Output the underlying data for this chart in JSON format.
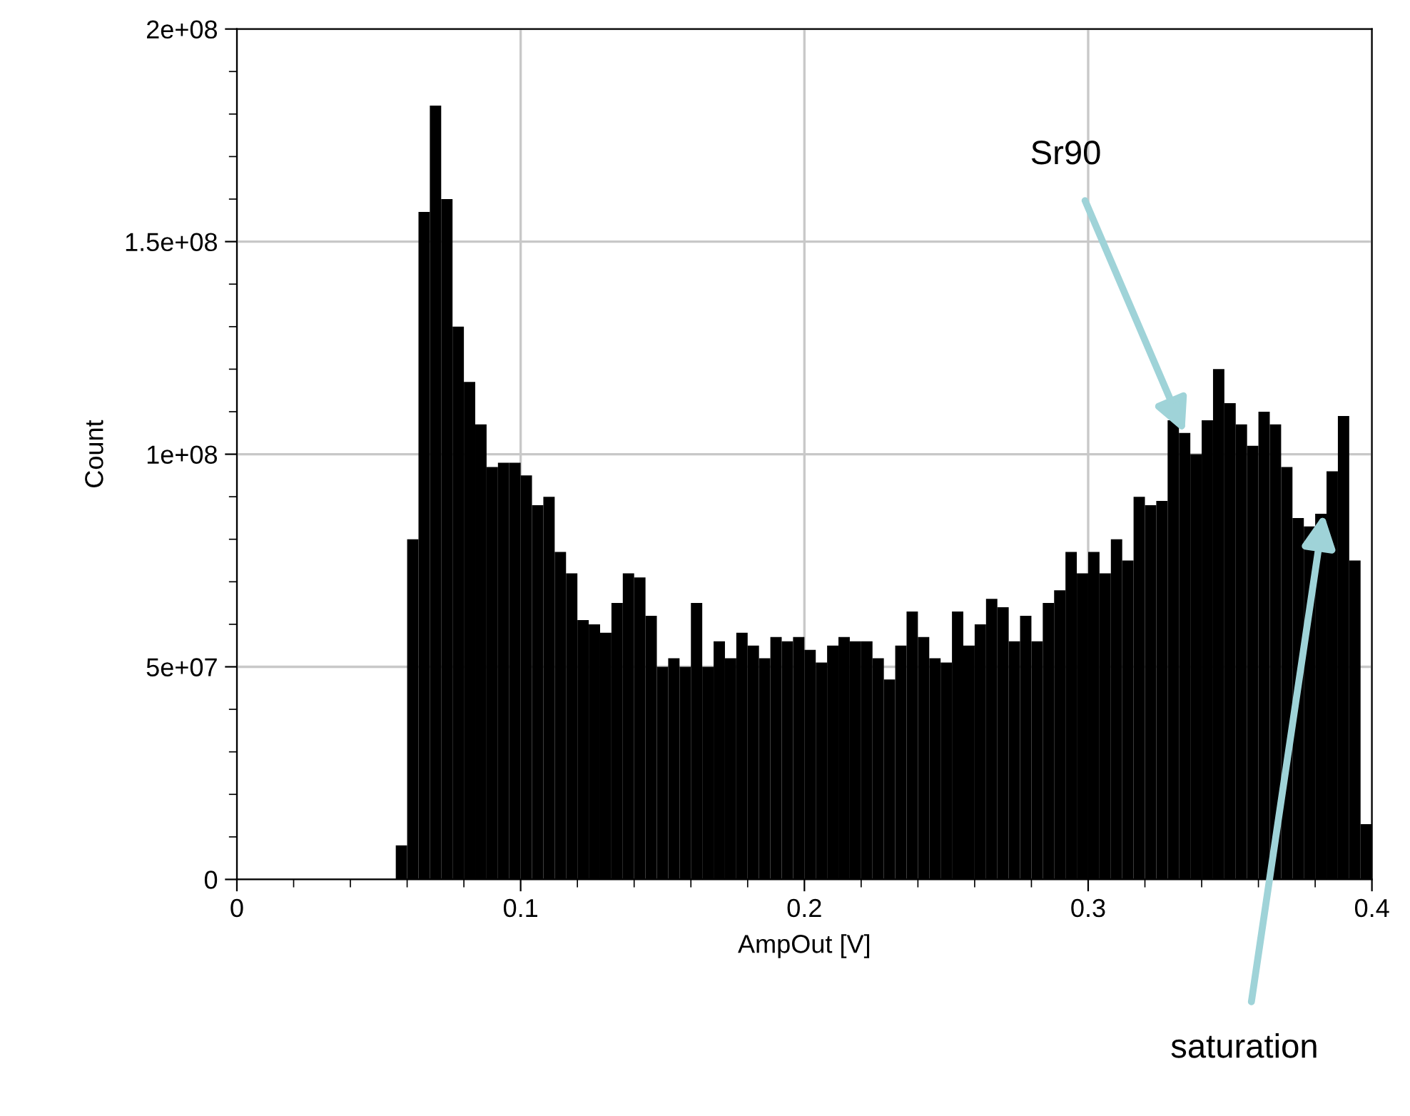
{
  "chart_data": {
    "type": "histogram",
    "xlabel": "AmpOut [V]",
    "ylabel": "Count",
    "bins": [
      0.056,
      0.06,
      0.064,
      0.068,
      0.072,
      0.076,
      0.08,
      0.084,
      0.088,
      0.092,
      0.096,
      0.1,
      0.104,
      0.108,
      0.112,
      0.116,
      0.12,
      0.124,
      0.128,
      0.132,
      0.136,
      0.14,
      0.144,
      0.148,
      0.152,
      0.156,
      0.16,
      0.164,
      0.168,
      0.172,
      0.176,
      0.18,
      0.184,
      0.188,
      0.192,
      0.196,
      0.2,
      0.204,
      0.208,
      0.212,
      0.216,
      0.22,
      0.224,
      0.228,
      0.232,
      0.236,
      0.24,
      0.244,
      0.248,
      0.252,
      0.256,
      0.26,
      0.264,
      0.268,
      0.272,
      0.276,
      0.28,
      0.284,
      0.288,
      0.292,
      0.296,
      0.3,
      0.304,
      0.308,
      0.312,
      0.316,
      0.32,
      0.324,
      0.328,
      0.332,
      0.336,
      0.34,
      0.344,
      0.348,
      0.352,
      0.356,
      0.36,
      0.364,
      0.368,
      0.372,
      0.376,
      0.38,
      0.384,
      0.388,
      0.392,
      0.396,
      0.4
    ],
    "values": [
      8000000,
      80000000,
      157000000,
      182000000,
      160000000,
      130000000,
      117000000,
      107000000,
      97000000,
      98000000,
      98000000,
      95000000,
      88000000,
      90000000,
      77000000,
      72000000,
      61000000,
      60000000,
      58000000,
      65000000,
      72000000,
      71000000,
      62000000,
      50000000,
      52000000,
      50000000,
      65000000,
      50000000,
      56000000,
      52000000,
      58000000,
      55000000,
      52000000,
      57000000,
      56000000,
      57000000,
      54000000,
      51000000,
      55000000,
      57000000,
      56000000,
      56000000,
      52000000,
      47000000,
      55000000,
      63000000,
      57000000,
      52000000,
      51000000,
      63000000,
      55000000,
      60000000,
      66000000,
      64000000,
      56000000,
      62000000,
      56000000,
      65000000,
      68000000,
      77000000,
      72000000,
      77000000,
      72000000,
      80000000,
      75000000,
      90000000,
      88000000,
      89000000,
      108000000,
      105000000,
      100000000,
      108000000,
      120000000,
      112000000,
      107000000,
      102000000,
      110000000,
      107000000,
      97000000,
      85000000,
      83000000,
      86000000,
      96000000,
      109000000,
      75000000,
      13000000
    ],
    "color": "#000000",
    "xlim": [
      0,
      0.4
    ],
    "xticks": [
      0,
      0.1,
      0.2,
      0.3,
      0.4
    ],
    "ylim": [
      0,
      200000000
    ],
    "yticks": [
      {
        "value": 0,
        "label": "0"
      },
      {
        "value": 50000000,
        "label": "5e+07"
      },
      {
        "value": 100000000,
        "label": "1e+08"
      },
      {
        "value": 150000000,
        "label": "1.5e+08"
      },
      {
        "value": 200000000,
        "label": "2e+08"
      }
    ],
    "grid": true,
    "annotations": [
      {
        "text": "Sr90",
        "x": 0.334,
        "y": 105000000
      },
      {
        "text": "saturation",
        "x": 0.383,
        "y": 86000000
      }
    ]
  }
}
